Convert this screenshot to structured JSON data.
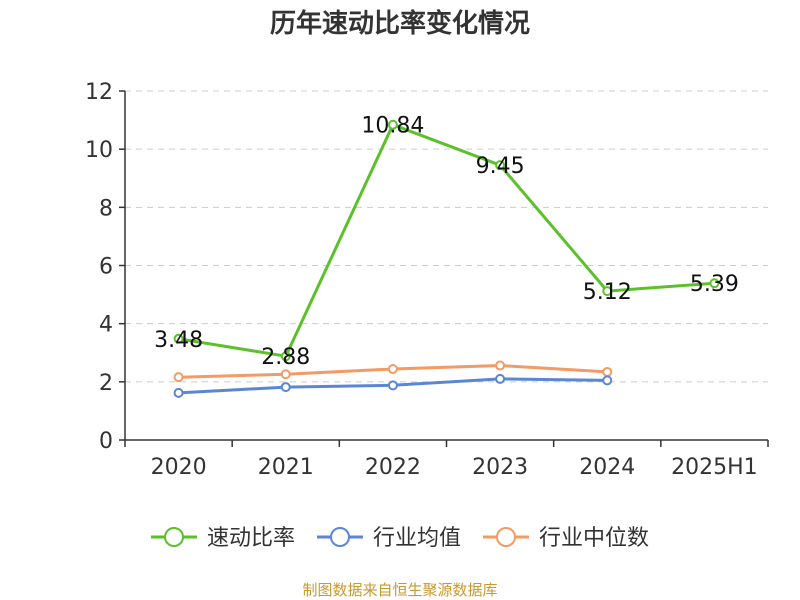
{
  "chart_data": {
    "type": "line",
    "title": "历年速动比率变化情况",
    "categories": [
      "2020",
      "2021",
      "2022",
      "2023",
      "2024",
      "2025H1"
    ],
    "ylim": [
      0,
      12
    ],
    "yticks": [
      0,
      2,
      4,
      6,
      8,
      10,
      12
    ],
    "grid": true,
    "legend_position": "bottom",
    "series": [
      {
        "name": "速动比率",
        "color": "#5cc02b",
        "values": [
          3.48,
          2.88,
          10.84,
          9.45,
          5.12,
          5.39
        ],
        "labels": [
          "3.48",
          "2.88",
          "10.84",
          "9.45",
          "5.12",
          "5.39"
        ]
      },
      {
        "name": "行业均值",
        "color": "#5b86d6",
        "values": [
          1.62,
          1.82,
          1.88,
          2.1,
          2.05,
          null
        ]
      },
      {
        "name": "行业中位数",
        "color": "#f49a64",
        "values": [
          2.16,
          2.26,
          2.44,
          2.56,
          2.34,
          null
        ]
      }
    ]
  },
  "source": {
    "text": "制图数据来自恒生聚源数据库",
    "color": "#c9992c"
  }
}
